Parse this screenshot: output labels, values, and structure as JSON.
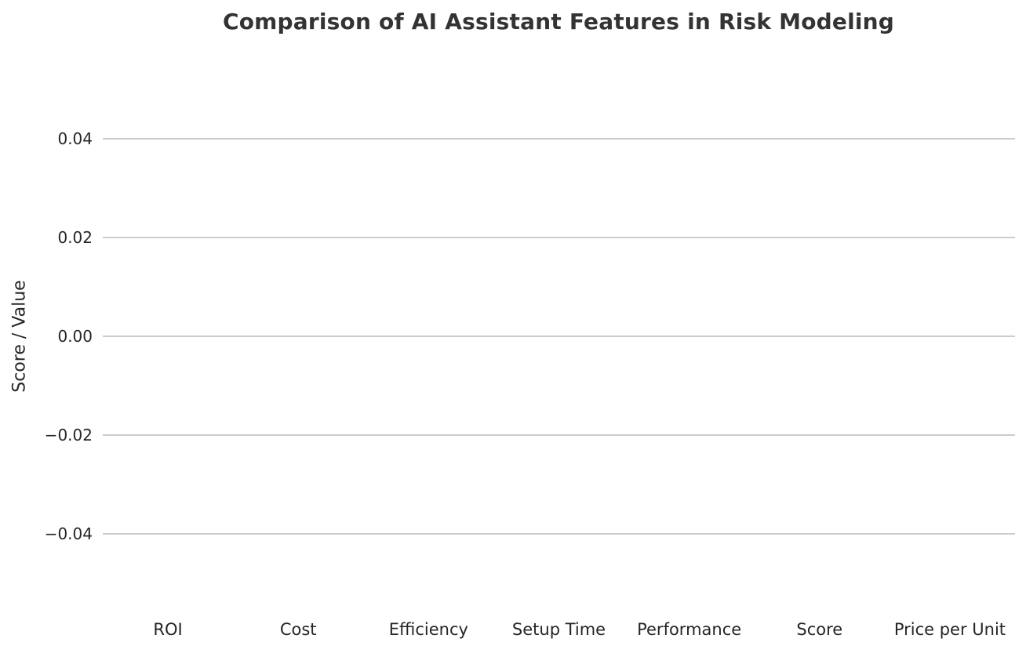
{
  "figure": {
    "title": "Comparison of AI Assistant Features in Risk Modeling",
    "ylabel": "Score / Value"
  },
  "chart_data": {
    "type": "bar",
    "title": "Comparison of AI Assistant Features in Risk Modeling",
    "categories": [
      "ROI",
      "Cost",
      "Efficiency",
      "Setup Time",
      "Performance",
      "Score",
      "Price per Unit"
    ],
    "series": [],
    "values": [],
    "xlabel": "",
    "ylabel": "Score / Value",
    "ylim": [
      -0.05,
      0.05
    ],
    "yticks": [
      0.04,
      0.02,
      0.0,
      -0.02,
      -0.04
    ],
    "ytick_labels": [
      "0.04",
      "0.02",
      "0.00",
      "−0.02",
      "−0.04"
    ],
    "grid": "horizontal-only",
    "legend": "none",
    "plot_is_empty": true,
    "colors": {
      "background": "#ffffff",
      "gridline": "#cccccc",
      "title_text": "#333333",
      "tick_text": "#262626"
    }
  }
}
